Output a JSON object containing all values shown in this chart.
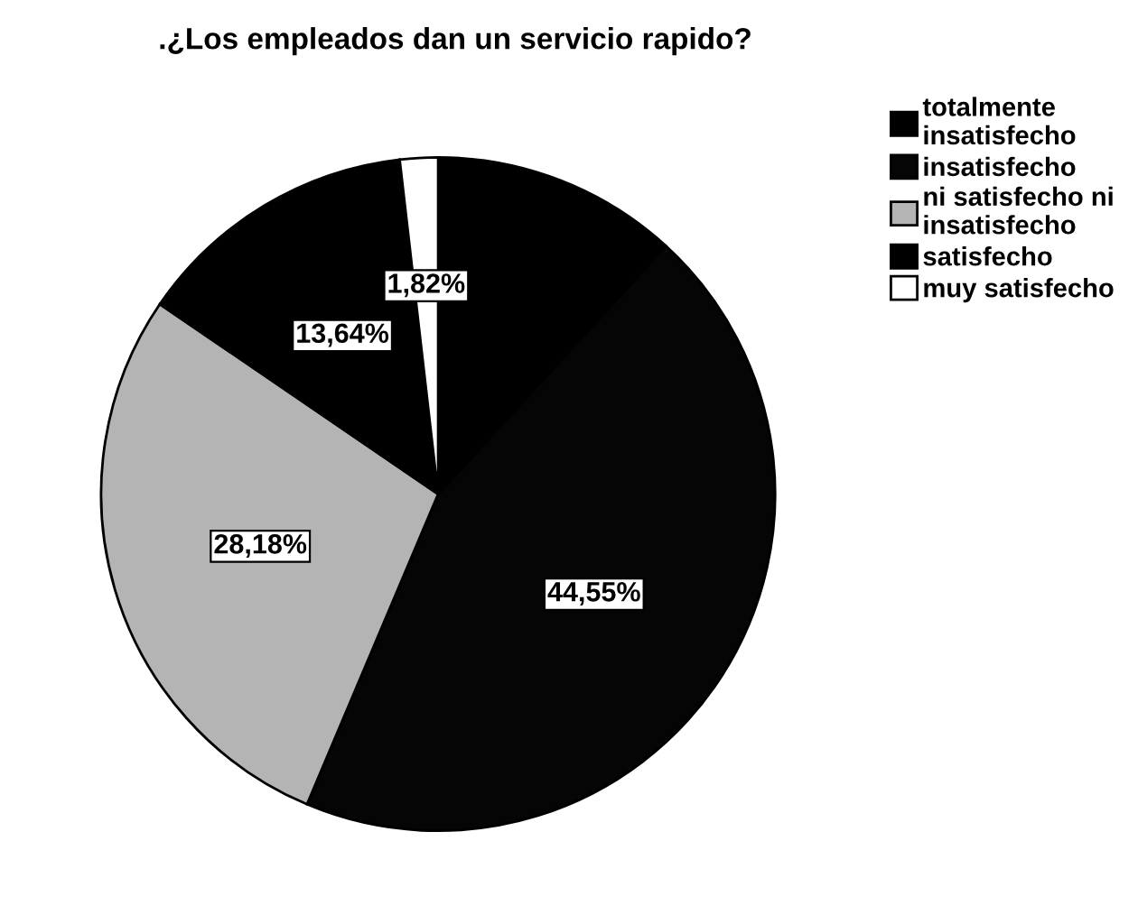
{
  "chart_data": {
    "type": "pie",
    "title": ".¿Los empleados dan un servicio rapido?",
    "categories": [
      "totalmente insatisfecho",
      "insatisfecho",
      "ni satisfecho ni insatisfecho",
      "satisfecho",
      "muy satisfecho"
    ],
    "values": [
      11.81,
      44.55,
      28.18,
      13.64,
      1.82
    ],
    "value_labels": [
      null,
      "44,55%",
      "28,18%",
      "13,64%",
      "1,82%"
    ],
    "colors": [
      "#000000",
      "#050505",
      "#b4b4b4",
      "#000000",
      "#ffffff"
    ],
    "legend": "top right"
  }
}
